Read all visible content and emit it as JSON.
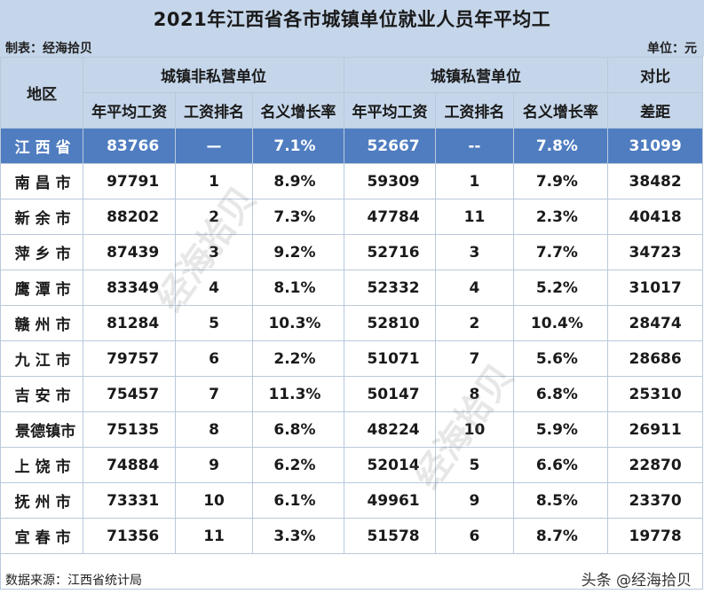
{
  "title": "2021年江西省各市城镇单位就业人员年平均工",
  "maker": "制表：经海拾贝",
  "unit": "单位：元",
  "headers": {
    "region": "地区",
    "group_public": "城镇非私营单位",
    "group_private": "城镇私营单位",
    "group_compare": "对比",
    "avg_wage": "年平均工资",
    "rank": "工资排名",
    "growth": "名义增长率",
    "gap": "差距"
  },
  "rows": [
    {
      "region": "江西省",
      "pub_wage": "83766",
      "pub_rank": "—",
      "pub_growth": "7.1%",
      "pri_wage": "52667",
      "pri_rank": "--",
      "pri_growth": "7.8%",
      "gap": "31099"
    },
    {
      "region": "南昌市",
      "pub_wage": "97791",
      "pub_rank": "1",
      "pub_growth": "8.9%",
      "pri_wage": "59309",
      "pri_rank": "1",
      "pri_growth": "7.9%",
      "gap": "38482"
    },
    {
      "region": "新余市",
      "pub_wage": "88202",
      "pub_rank": "2",
      "pub_growth": "7.3%",
      "pri_wage": "47784",
      "pri_rank": "11",
      "pri_growth": "2.3%",
      "gap": "40418"
    },
    {
      "region": "萍乡市",
      "pub_wage": "87439",
      "pub_rank": "3",
      "pub_growth": "9.2%",
      "pri_wage": "52716",
      "pri_rank": "3",
      "pri_growth": "7.7%",
      "gap": "34723"
    },
    {
      "region": "鹰潭市",
      "pub_wage": "83349",
      "pub_rank": "4",
      "pub_growth": "8.1%",
      "pri_wage": "52332",
      "pri_rank": "4",
      "pri_growth": "5.2%",
      "gap": "31017"
    },
    {
      "region": "赣州市",
      "pub_wage": "81284",
      "pub_rank": "5",
      "pub_growth": "10.3%",
      "pri_wage": "52810",
      "pri_rank": "2",
      "pri_growth": "10.4%",
      "gap": "28474"
    },
    {
      "region": "九江市",
      "pub_wage": "79757",
      "pub_rank": "6",
      "pub_growth": "2.2%",
      "pri_wage": "51071",
      "pri_rank": "7",
      "pri_growth": "5.6%",
      "gap": "28686"
    },
    {
      "region": "吉安市",
      "pub_wage": "75457",
      "pub_rank": "7",
      "pub_growth": "11.3%",
      "pri_wage": "50147",
      "pri_rank": "8",
      "pri_growth": "6.8%",
      "gap": "25310"
    },
    {
      "region": "景德镇市",
      "pub_wage": "75135",
      "pub_rank": "8",
      "pub_growth": "6.8%",
      "pri_wage": "48224",
      "pri_rank": "10",
      "pri_growth": "5.9%",
      "gap": "26911"
    },
    {
      "region": "上饶市",
      "pub_wage": "74884",
      "pub_rank": "9",
      "pub_growth": "6.2%",
      "pri_wage": "52014",
      "pri_rank": "5",
      "pri_growth": "6.6%",
      "gap": "22870"
    },
    {
      "region": "抚州市",
      "pub_wage": "73331",
      "pub_rank": "10",
      "pub_growth": "6.1%",
      "pri_wage": "49961",
      "pri_rank": "9",
      "pri_growth": "8.5%",
      "gap": "23370"
    },
    {
      "region": "宜春市",
      "pub_wage": "71356",
      "pub_rank": "11",
      "pub_growth": "3.3%",
      "pri_wage": "51578",
      "pri_rank": "6",
      "pri_growth": "8.7%",
      "gap": "19778"
    }
  ],
  "source": "数据来源：江西省统计局",
  "brand": "头条 @经海拾贝",
  "watermark": "经海拾贝",
  "colors": {
    "header_bg": "#c5d6ea",
    "province_row_bg": "#4f7dc0",
    "border": "#b9c9dc"
  }
}
